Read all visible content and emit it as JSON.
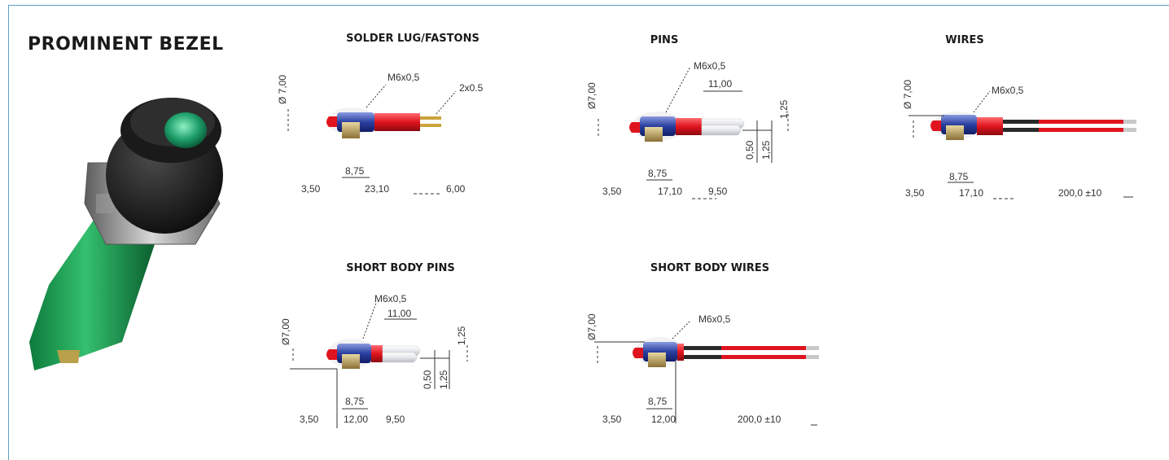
{
  "title": "PROMINENT BEZEL",
  "colors": {
    "frame": "#5a9fc6",
    "lens": "#1fa06a",
    "sleeve": "#1c9c55",
    "nut": "#2a3fa0",
    "red": "#e0141e",
    "black": "#222222"
  },
  "sections": {
    "solder": {
      "title": "SOLDER LUG/FASTONS",
      "thread": "M6x0,5",
      "faston": "2x0.5",
      "diameter": "Ø 7,00",
      "d1": "8,75",
      "d2": "3,50",
      "d3": "23,10",
      "d4": "6,00"
    },
    "pins": {
      "title": "PINS",
      "thread": "M6x0,5",
      "pin_len": "11,00",
      "diameter": "Ø7,00",
      "v1": "1,25",
      "v2": "0,50",
      "v3": "1,25",
      "d1": "8,75",
      "d2": "3,50",
      "d3": "17,10",
      "d4": "9,50"
    },
    "wires": {
      "title": "WIRES",
      "thread": "M6x0,5",
      "diameter": "Ø 7,00",
      "d1": "8,75",
      "d2": "3,50",
      "d3": "17,10",
      "d4": "200,0  ±10"
    },
    "short_pins": {
      "title": "SHORT BODY PINS",
      "thread": "M6x0,5",
      "pin_len": "11,00",
      "diameter": "Ø7,00",
      "v1": "1,25",
      "v2": "0,50",
      "v3": "1,25",
      "d1": "8,75",
      "d2": "3,50",
      "d3": "12,00",
      "d4": "9,50"
    },
    "short_wires": {
      "title": "SHORT BODY WIRES",
      "thread": "M6x0,5",
      "diameter": "Ø7,00",
      "d1": "8,75",
      "d2": "3,50",
      "d3": "12,00",
      "d4": "200,0  ±10"
    }
  }
}
